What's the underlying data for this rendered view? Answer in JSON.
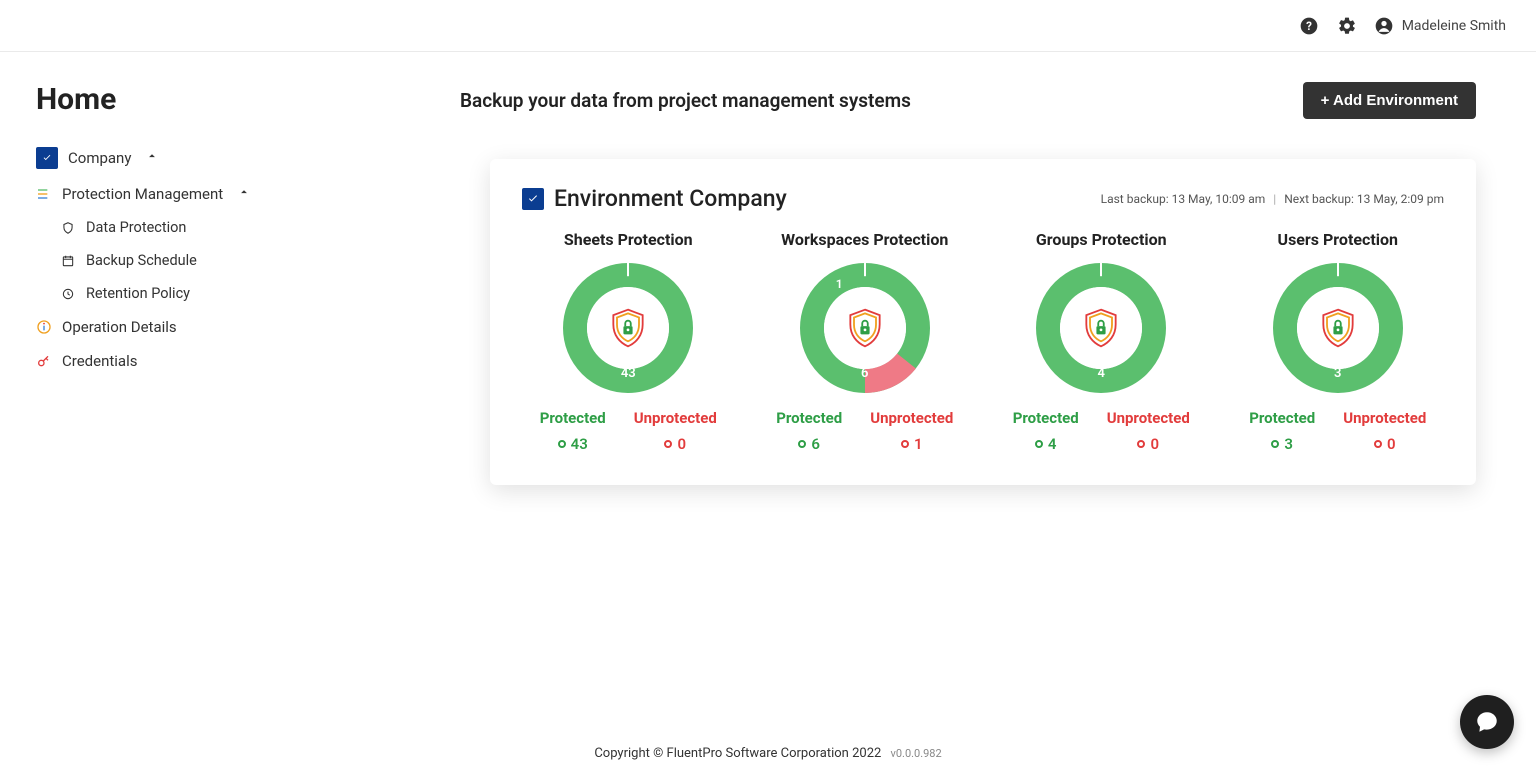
{
  "header": {
    "user_name": "Madeleine Smith"
  },
  "sidebar": {
    "title": "Home",
    "company_label": "Company",
    "protection_label": "Protection Management",
    "sub_data_protection": "Data Protection",
    "sub_backup_schedule": "Backup Schedule",
    "sub_retention_policy": "Retention Policy",
    "operation_details": "Operation Details",
    "credentials": "Credentials"
  },
  "main": {
    "subtitle": "Backup your data from project management systems",
    "add_button": "+ Add Environment"
  },
  "card": {
    "title": "Environment Company",
    "last_backup_label": "Last backup: 13 May, 10:09 am",
    "next_backup_label": "Next backup: 13 May, 2:09 pm",
    "protected_label": "Protected",
    "unprotected_label": "Unprotected",
    "protected_color": "#5bbf6e",
    "unprotected_color": "#ef7a86",
    "donut_thickness": 24,
    "donut_radius": 65,
    "sections": [
      {
        "title": "Sheets Protection",
        "protected": 43,
        "unprotected": 0
      },
      {
        "title": "Workspaces Protection",
        "protected": 6,
        "unprotected": 1
      },
      {
        "title": "Groups Protection",
        "protected": 4,
        "unprotected": 0
      },
      {
        "title": "Users Protection",
        "protected": 3,
        "unprotected": 0
      }
    ]
  },
  "footer": {
    "copyright": "Copyright © FluentPro Software Corporation 2022",
    "version": "v0.0.0.982"
  }
}
